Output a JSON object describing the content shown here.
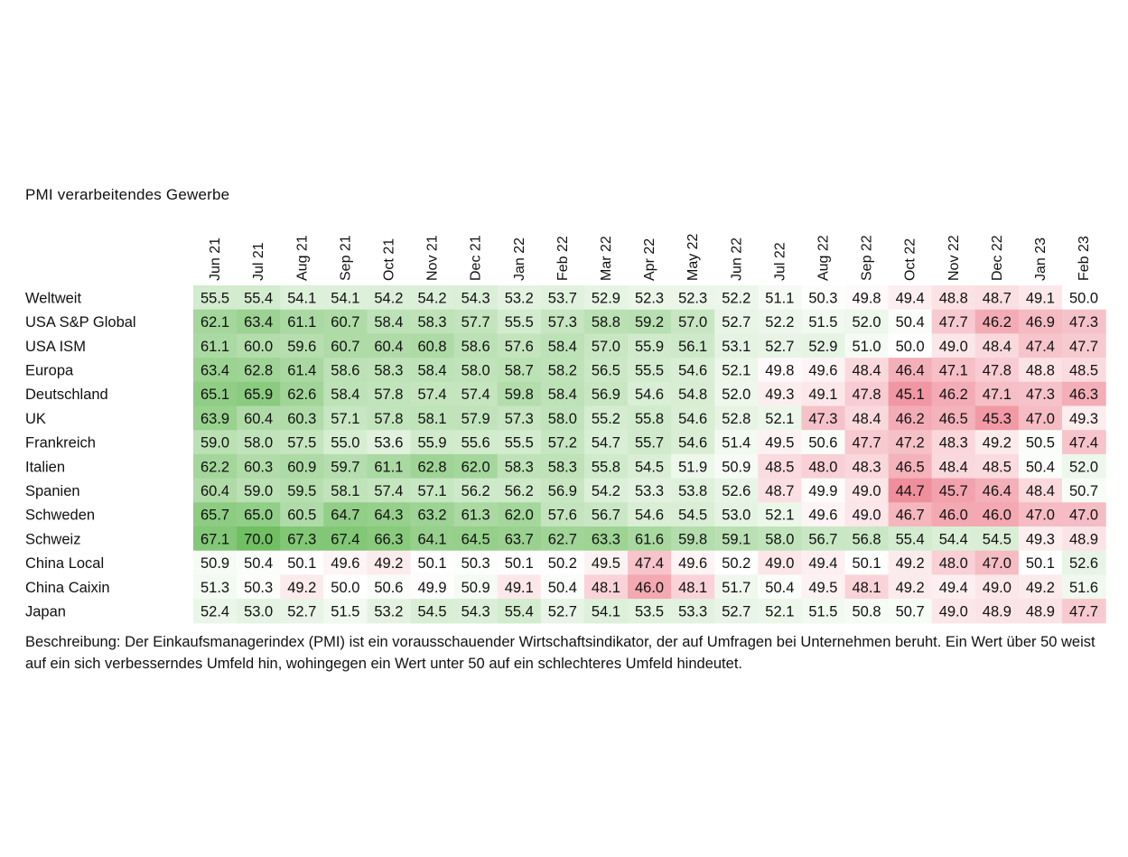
{
  "title": "PMI verarbeitendes Gewerbe",
  "description": "Beschreibung: Der Einkaufsmanagerindex (PMI) ist ein vorausschauender Wirtschaftsindikator, der auf Umfragen bei Unternehmen beruht. Ein Wert über 50 weist auf ein sich verbesserndes Umfeld hin, wohingegen ein Wert unter 50 auf ein schlechteres Umfeld hindeutet.",
  "colors": {
    "high": "#71bf63",
    "neutral": "#ffffff",
    "low": "#ef8f9c",
    "text": "#111111"
  },
  "chart_data": {
    "type": "heatmap",
    "title": "PMI verarbeitendes Gewerbe",
    "threshold": 50,
    "color_scale": {
      "min": 44.7,
      "mid": 50,
      "max": 70.0,
      "min_color": "#ef8f9c",
      "mid_color": "#ffffff",
      "max_color": "#71bf63"
    },
    "columns": [
      "Jun 21",
      "Jul 21",
      "Aug 21",
      "Sep 21",
      "Oct 21",
      "Nov 21",
      "Dec 21",
      "Jan 22",
      "Feb 22",
      "Mar 22",
      "Apr 22",
      "May 22",
      "Jun 22",
      "Jul 22",
      "Aug 22",
      "Sep 22",
      "Oct 22",
      "Nov 22",
      "Dec 22",
      "Jan 23",
      "Feb 23"
    ],
    "rows": [
      {
        "name": "Weltweit",
        "values": [
          55.5,
          55.4,
          54.1,
          54.1,
          54.2,
          54.2,
          54.3,
          53.2,
          53.7,
          52.9,
          52.3,
          52.3,
          52.2,
          51.1,
          50.3,
          49.8,
          49.4,
          48.8,
          48.7,
          49.1,
          50.0
        ]
      },
      {
        "name": "USA S&P Global",
        "values": [
          62.1,
          63.4,
          61.1,
          60.7,
          58.4,
          58.3,
          57.7,
          55.5,
          57.3,
          58.8,
          59.2,
          57.0,
          52.7,
          52.2,
          51.5,
          52.0,
          50.4,
          47.7,
          46.2,
          46.9,
          47.3
        ]
      },
      {
        "name": "USA ISM",
        "values": [
          61.1,
          60.0,
          59.6,
          60.7,
          60.4,
          60.8,
          58.6,
          57.6,
          58.4,
          57.0,
          55.9,
          56.1,
          53.1,
          52.7,
          52.9,
          51.0,
          50.0,
          49.0,
          48.4,
          47.4,
          47.7
        ]
      },
      {
        "name": "Europa",
        "values": [
          63.4,
          62.8,
          61.4,
          58.6,
          58.3,
          58.4,
          58.0,
          58.7,
          58.2,
          56.5,
          55.5,
          54.6,
          52.1,
          49.8,
          49.6,
          48.4,
          46.4,
          47.1,
          47.8,
          48.8,
          48.5
        ]
      },
      {
        "name": "Deutschland",
        "values": [
          65.1,
          65.9,
          62.6,
          58.4,
          57.8,
          57.4,
          57.4,
          59.8,
          58.4,
          56.9,
          54.6,
          54.8,
          52.0,
          49.3,
          49.1,
          47.8,
          45.1,
          46.2,
          47.1,
          47.3,
          46.3
        ]
      },
      {
        "name": "UK",
        "values": [
          63.9,
          60.4,
          60.3,
          57.1,
          57.8,
          58.1,
          57.9,
          57.3,
          58.0,
          55.2,
          55.8,
          54.6,
          52.8,
          52.1,
          47.3,
          48.4,
          46.2,
          46.5,
          45.3,
          47.0,
          49.3
        ]
      },
      {
        "name": "Frankreich",
        "values": [
          59.0,
          58.0,
          57.5,
          55.0,
          53.6,
          55.9,
          55.6,
          55.5,
          57.2,
          54.7,
          55.7,
          54.6,
          51.4,
          49.5,
          50.6,
          47.7,
          47.2,
          48.3,
          49.2,
          50.5,
          47.4
        ]
      },
      {
        "name": "Italien",
        "values": [
          62.2,
          60.3,
          60.9,
          59.7,
          61.1,
          62.8,
          62.0,
          58.3,
          58.3,
          55.8,
          54.5,
          51.9,
          50.9,
          48.5,
          48.0,
          48.3,
          46.5,
          48.4,
          48.5,
          50.4,
          52.0
        ]
      },
      {
        "name": "Spanien",
        "values": [
          60.4,
          59.0,
          59.5,
          58.1,
          57.4,
          57.1,
          56.2,
          56.2,
          56.9,
          54.2,
          53.3,
          53.8,
          52.6,
          48.7,
          49.9,
          49.0,
          44.7,
          45.7,
          46.4,
          48.4,
          50.7
        ]
      },
      {
        "name": "Schweden",
        "values": [
          65.7,
          65.0,
          60.5,
          64.7,
          64.3,
          63.2,
          61.3,
          62.0,
          57.6,
          56.7,
          54.6,
          54.5,
          53.0,
          52.1,
          49.6,
          49.0,
          46.7,
          46.0,
          46.0,
          47.0,
          47.0
        ]
      },
      {
        "name": "Schweiz",
        "values": [
          67.1,
          70.0,
          67.3,
          67.4,
          66.3,
          64.1,
          64.5,
          63.7,
          62.7,
          63.3,
          61.6,
          59.8,
          59.1,
          58.0,
          56.7,
          56.8,
          55.4,
          54.4,
          54.5,
          49.3,
          48.9
        ]
      },
      {
        "name": "China Local",
        "values": [
          50.9,
          50.4,
          50.1,
          49.6,
          49.2,
          50.1,
          50.3,
          50.1,
          50.2,
          49.5,
          47.4,
          49.6,
          50.2,
          49.0,
          49.4,
          50.1,
          49.2,
          48.0,
          47.0,
          50.1,
          52.6
        ]
      },
      {
        "name": "China Caixin",
        "values": [
          51.3,
          50.3,
          49.2,
          50.0,
          50.6,
          49.9,
          50.9,
          49.1,
          50.4,
          48.1,
          46.0,
          48.1,
          51.7,
          50.4,
          49.5,
          48.1,
          49.2,
          49.4,
          49.0,
          49.2,
          51.6
        ]
      },
      {
        "name": "Japan",
        "values": [
          52.4,
          53.0,
          52.7,
          51.5,
          53.2,
          54.5,
          54.3,
          55.4,
          52.7,
          54.1,
          53.5,
          53.3,
          52.7,
          52.1,
          51.5,
          50.8,
          50.7,
          49.0,
          48.9,
          48.9,
          47.7
        ]
      }
    ]
  }
}
